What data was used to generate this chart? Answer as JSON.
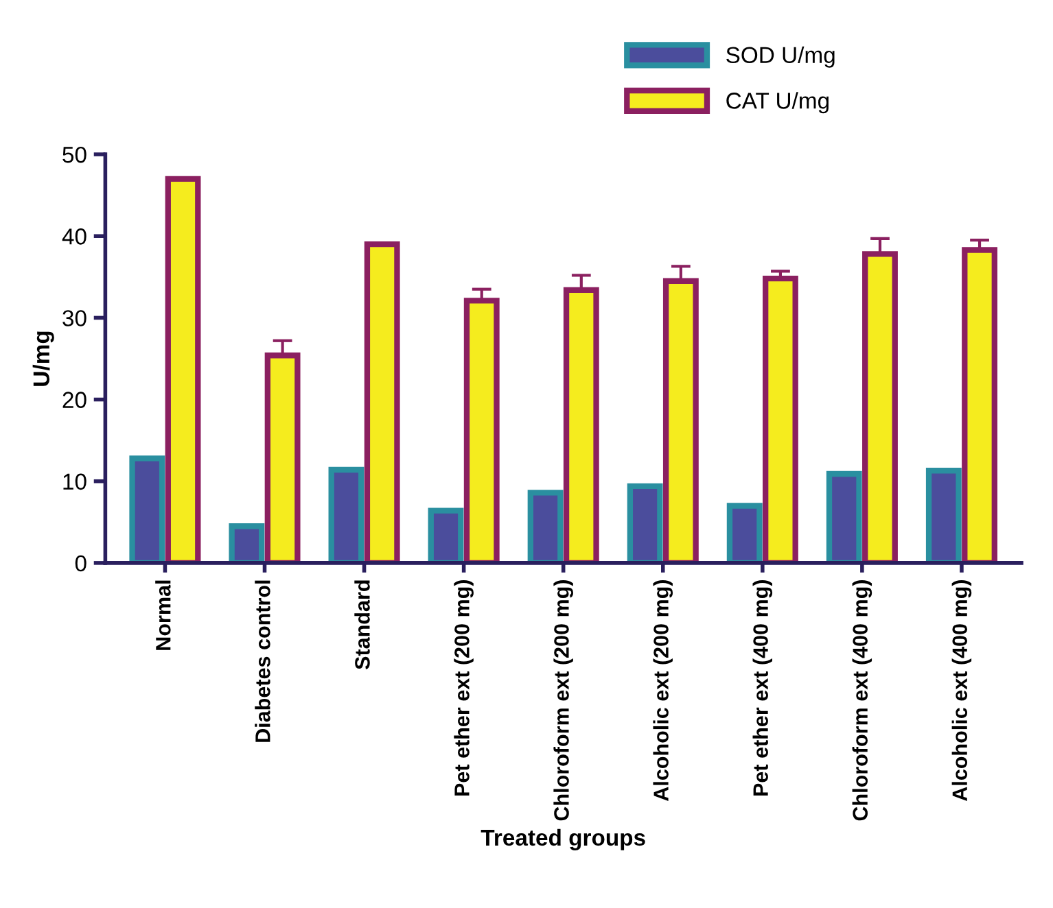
{
  "chart_data": {
    "type": "bar",
    "xlabel": "Treated groups",
    "ylabel": "U/mg",
    "categories": [
      "Normal",
      "Diabetes control",
      "Standard",
      "Pet ether ext (200 mg)",
      "Chloroform ext (200 mg)",
      "Alcoholic ext (200 mg)",
      "Pet ether ext (400 mg)",
      "Chloroform ext (400 mg)",
      "Alcoholic ext (400 mg)"
    ],
    "series": [
      {
        "name": "SOD U/mg",
        "color": "#4b4d9c",
        "values": [
          12.8,
          4.5,
          11.4,
          6.4,
          8.6,
          9.4,
          7.0,
          10.9,
          11.3
        ]
      },
      {
        "name": "CAT U/mg",
        "color": "#f5ec1e",
        "values": [
          47.0,
          25.4,
          39.0,
          32.1,
          33.4,
          34.5,
          34.8,
          37.8,
          38.3
        ],
        "errors": [
          null,
          [
            25.4,
            27.2
          ],
          null,
          [
            32.1,
            33.5
          ],
          [
            33.4,
            35.2
          ],
          [
            34.5,
            36.3
          ],
          [
            34.8,
            35.7
          ],
          [
            37.8,
            39.7
          ],
          [
            38.3,
            39.5
          ]
        ]
      }
    ],
    "ylim": [
      0,
      50
    ],
    "yticks": [
      0,
      10,
      20,
      30,
      40,
      50
    ],
    "grid": false,
    "legend": "top right"
  }
}
